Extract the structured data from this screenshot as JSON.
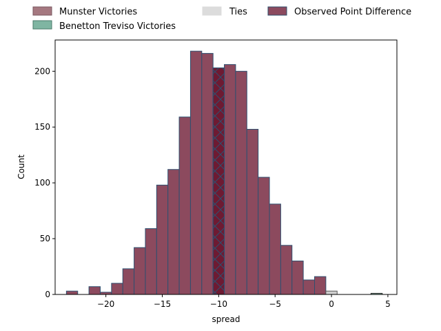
{
  "chart_data": {
    "type": "bar",
    "title": "",
    "xlabel": "spread",
    "ylabel": "Count",
    "xlim": [
      -24.5,
      5.8
    ],
    "ylim": [
      0,
      228
    ],
    "xticks": [
      -20,
      -15,
      -10,
      -5,
      0,
      5
    ],
    "xtick_labels": [
      "−20",
      "−15",
      "−10",
      "−5",
      "0",
      "5"
    ],
    "yticks": [
      0,
      50,
      100,
      150,
      200
    ],
    "bin_width": 1,
    "grid": false,
    "legend_placement": "above plot",
    "legend": [
      {
        "label": "Munster Victories",
        "color": "#a57880",
        "edge": "#7a5860"
      },
      {
        "label": "Ties",
        "color": "#d9d9d9",
        "edge": "#d9d9d9"
      },
      {
        "label": "Observed Point Difference",
        "color": "#8c4a5e",
        "edge": "#2e4d6b"
      },
      {
        "label": "Benetton Treviso Victories",
        "color": "#7fb5a2",
        "edge": "#4a7a6a"
      }
    ],
    "series": [
      {
        "name": "Munster Victories",
        "color": "#8c4a5e",
        "edge": "#2e5070",
        "bins": [
          {
            "x": -23,
            "y": 3
          },
          {
            "x": -22,
            "y": 0
          },
          {
            "x": -21,
            "y": 7
          },
          {
            "x": -20,
            "y": 2
          },
          {
            "x": -19,
            "y": 10
          },
          {
            "x": -18,
            "y": 23
          },
          {
            "x": -17,
            "y": 42
          },
          {
            "x": -16,
            "y": 59
          },
          {
            "x": -15,
            "y": 98
          },
          {
            "x": -14,
            "y": 112
          },
          {
            "x": -13,
            "y": 159
          },
          {
            "x": -12,
            "y": 218
          },
          {
            "x": -11,
            "y": 216
          },
          {
            "x": -10,
            "y": 203
          },
          {
            "x": -9,
            "y": 206
          },
          {
            "x": -8,
            "y": 200
          },
          {
            "x": -7,
            "y": 148
          },
          {
            "x": -6,
            "y": 105
          },
          {
            "x": -5,
            "y": 81
          },
          {
            "x": -4,
            "y": 44
          },
          {
            "x": -3,
            "y": 30
          },
          {
            "x": -2,
            "y": 13
          },
          {
            "x": -1,
            "y": 16
          }
        ]
      },
      {
        "name": "Ties",
        "color": "#d0d0d0",
        "edge": "#555555",
        "bins": [
          {
            "x": 0,
            "y": 3
          }
        ]
      },
      {
        "name": "Benetton Treviso Victories",
        "color": "#7fb5a2",
        "edge": "#222222",
        "bins": [
          {
            "x": 4,
            "y": 1
          }
        ]
      }
    ],
    "observed": {
      "x": -10,
      "y": 203,
      "color": "#6e1a32",
      "hatch_color": "#2e5070"
    }
  }
}
